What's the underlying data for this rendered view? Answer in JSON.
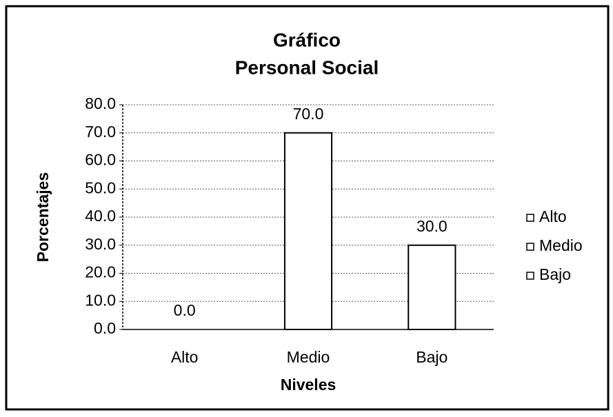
{
  "chart_data": {
    "type": "bar",
    "title": "Gráfico",
    "subtitle": "Personal Social",
    "x_label": "Niveles",
    "y_label": "Porcentajes",
    "categories": [
      "Alto",
      "Medio",
      "Bajo"
    ],
    "values": [
      0,
      70,
      30
    ],
    "value_labels": [
      "0.0",
      "70.0",
      "30.0"
    ],
    "colors": [
      "#ffffff",
      "#ffffff",
      "#ffffff"
    ],
    "ylim": [
      0,
      80
    ],
    "yticks": [
      {
        "value": 0,
        "label": "0.0"
      },
      {
        "value": 10,
        "label": "10.0"
      },
      {
        "value": 20,
        "label": "20.0"
      },
      {
        "value": 30,
        "label": "30.0"
      },
      {
        "value": 40,
        "label": "40.0"
      },
      {
        "value": 50,
        "label": "50.0"
      },
      {
        "value": 60,
        "label": "60.0"
      },
      {
        "value": 70,
        "label": "70.0"
      },
      {
        "value": 80,
        "label": "80.0"
      }
    ],
    "grid": true,
    "legend": "right"
  }
}
